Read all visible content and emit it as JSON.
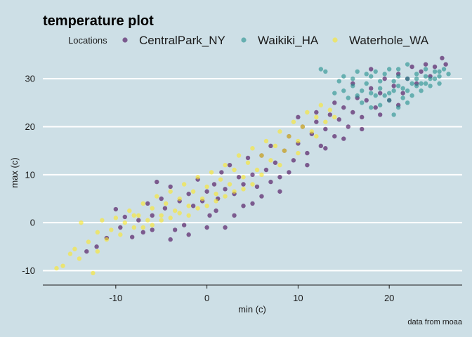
{
  "chart_data": {
    "type": "scatter",
    "title": "temperature plot",
    "xlabel": "min (c)",
    "ylabel": "max (c)",
    "caption": "data from rnoaa",
    "xlim": [
      -18,
      28
    ],
    "ylim": [
      -13,
      35
    ],
    "x_ticks": [
      -10,
      0,
      10,
      20
    ],
    "y_ticks": [
      -10,
      0,
      10,
      20,
      30
    ],
    "grid": {
      "horizontal_major": true,
      "vertical": false
    },
    "legend": {
      "title": "Locations",
      "position": "top"
    },
    "series": [
      {
        "name": "CentralPark_NY",
        "color": "#440154",
        "points": [
          [
            -13.2,
            -6.0
          ],
          [
            -12.1,
            -5.0
          ],
          [
            -11.0,
            -3.2
          ],
          [
            -10.0,
            2.8
          ],
          [
            -9.5,
            -1.0
          ],
          [
            -9.0,
            1.2
          ],
          [
            -8.2,
            -3.0
          ],
          [
            -7.5,
            0.5
          ],
          [
            -7.0,
            -2.0
          ],
          [
            -6.5,
            4.0
          ],
          [
            -6.0,
            1.5
          ],
          [
            -5.5,
            8.5
          ],
          [
            -5.0,
            5.0
          ],
          [
            -4.6,
            3.0
          ],
          [
            -4.0,
            7.5
          ],
          [
            -3.5,
            -1.5
          ],
          [
            -3.0,
            4.5
          ],
          [
            -2.5,
            -0.5
          ],
          [
            -2.0,
            6.0
          ],
          [
            -1.5,
            3.5
          ],
          [
            -1.0,
            9.0
          ],
          [
            -0.5,
            4.5
          ],
          [
            0.0,
            6.5
          ],
          [
            0.3,
            1.5
          ],
          [
            0.8,
            8.0
          ],
          [
            1.2,
            5.0
          ],
          [
            1.6,
            10.5
          ],
          [
            2.0,
            7.0
          ],
          [
            2.5,
            12.0
          ],
          [
            3.0,
            6.0
          ],
          [
            3.5,
            9.5
          ],
          [
            4.0,
            8.0
          ],
          [
            4.5,
            13.5
          ],
          [
            5.0,
            10.0
          ],
          [
            5.5,
            7.5
          ],
          [
            6.0,
            14.0
          ],
          [
            6.5,
            11.0
          ],
          [
            7.0,
            16.0
          ],
          [
            7.5,
            12.5
          ],
          [
            8.0,
            9.5
          ],
          [
            8.5,
            15.0
          ],
          [
            9.0,
            18.0
          ],
          [
            9.5,
            13.0
          ],
          [
            10.0,
            16.5
          ],
          [
            10.5,
            20.0
          ],
          [
            11.0,
            14.5
          ],
          [
            11.5,
            18.5
          ],
          [
            12.0,
            21.0
          ],
          [
            12.5,
            16.0
          ],
          [
            13.0,
            19.5
          ],
          [
            13.5,
            22.5
          ],
          [
            14.0,
            18.0
          ],
          [
            14.5,
            21.5
          ],
          [
            15.0,
            24.0
          ],
          [
            15.5,
            20.0
          ],
          [
            16.0,
            23.0
          ],
          [
            16.5,
            26.0
          ],
          [
            17.0,
            22.0
          ],
          [
            17.5,
            25.5
          ],
          [
            18.0,
            28.0
          ],
          [
            18.5,
            24.0
          ],
          [
            19.0,
            27.0
          ],
          [
            19.5,
            30.0
          ],
          [
            20.0,
            25.5
          ],
          [
            20.5,
            28.5
          ],
          [
            21.0,
            31.0
          ],
          [
            21.5,
            27.0
          ],
          [
            22.0,
            30.0
          ],
          [
            22.5,
            32.5
          ],
          [
            23.0,
            29.0
          ],
          [
            23.5,
            31.5
          ],
          [
            24.0,
            33.0
          ],
          [
            24.5,
            30.5
          ],
          [
            25.0,
            32.5
          ],
          [
            25.8,
            34.3
          ],
          [
            26.2,
            33.0
          ],
          [
            2.0,
            -1.0
          ],
          [
            4.0,
            3.5
          ],
          [
            6.0,
            5.5
          ],
          [
            8.0,
            6.5
          ],
          [
            -2.0,
            -2.5
          ],
          [
            0.0,
            -1.0
          ],
          [
            1.0,
            2.5
          ],
          [
            3.0,
            1.5
          ],
          [
            5.0,
            4.0
          ],
          [
            7.0,
            8.5
          ],
          [
            9.0,
            10.5
          ],
          [
            11.0,
            12.0
          ],
          [
            13.0,
            15.5
          ],
          [
            15.0,
            17.5
          ],
          [
            17.0,
            19.5
          ],
          [
            19.0,
            22.5
          ],
          [
            21.0,
            24.5
          ],
          [
            16.0,
            29.0
          ],
          [
            18.0,
            32.0
          ],
          [
            14.0,
            25.0
          ],
          [
            12.0,
            23.0
          ],
          [
            10.0,
            22.0
          ],
          [
            -4.0,
            -3.5
          ],
          [
            -6.0,
            -1.5
          ]
        ]
      },
      {
        "name": "Waikiki_HA",
        "color": "#21908c",
        "points": [
          [
            12.5,
            32.0
          ],
          [
            13.0,
            31.5
          ],
          [
            14.0,
            27.0
          ],
          [
            14.5,
            29.5
          ],
          [
            15.0,
            30.5
          ],
          [
            15.5,
            26.0
          ],
          [
            16.0,
            28.5
          ],
          [
            16.5,
            31.5
          ],
          [
            17.0,
            27.5
          ],
          [
            17.5,
            29.0
          ],
          [
            18.0,
            30.5
          ],
          [
            18.5,
            26.5
          ],
          [
            19.0,
            28.0
          ],
          [
            19.5,
            31.0
          ],
          [
            20.0,
            27.0
          ],
          [
            20.5,
            29.5
          ],
          [
            21.0,
            32.0
          ],
          [
            21.5,
            28.0
          ],
          [
            22.0,
            30.0
          ],
          [
            22.5,
            26.5
          ],
          [
            23.0,
            31.0
          ],
          [
            23.5,
            29.0
          ],
          [
            24.0,
            32.0
          ],
          [
            24.5,
            30.0
          ],
          [
            25.0,
            31.5
          ],
          [
            25.5,
            30.5
          ],
          [
            26.0,
            32.0
          ],
          [
            26.5,
            31.0
          ],
          [
            19.0,
            24.5
          ],
          [
            20.0,
            25.5
          ],
          [
            21.0,
            24.0
          ],
          [
            22.0,
            25.0
          ],
          [
            20.5,
            22.5
          ],
          [
            18.0,
            24.0
          ],
          [
            17.0,
            25.0
          ],
          [
            16.5,
            26.5
          ],
          [
            23.5,
            27.5
          ],
          [
            24.5,
            28.5
          ],
          [
            25.5,
            29.0
          ],
          [
            22.0,
            33.0
          ],
          [
            21.0,
            30.5
          ],
          [
            20.0,
            32.0
          ],
          [
            19.0,
            29.5
          ],
          [
            18.5,
            31.5
          ],
          [
            23.0,
            28.5
          ],
          [
            22.5,
            29.0
          ],
          [
            21.5,
            26.0
          ],
          [
            20.5,
            27.5
          ],
          [
            24.0,
            30.5
          ],
          [
            25.0,
            30.0
          ],
          [
            15.0,
            27.5
          ],
          [
            16.0,
            30.0
          ],
          [
            17.5,
            31.0
          ],
          [
            18.0,
            27.0
          ],
          [
            19.5,
            26.5
          ],
          [
            21.0,
            28.5
          ],
          [
            22.0,
            27.5
          ],
          [
            23.0,
            30.0
          ],
          [
            24.0,
            29.0
          ],
          [
            25.5,
            31.5
          ]
        ]
      },
      {
        "name": "Waterhole_WA",
        "color": "#fde725",
        "points": [
          [
            -16.5,
            -9.5
          ],
          [
            -15.8,
            -9.0
          ],
          [
            -15.0,
            -6.5
          ],
          [
            -14.5,
            -5.5
          ],
          [
            -13.8,
            0.0
          ],
          [
            -13.0,
            -4.0
          ],
          [
            -12.5,
            -10.5
          ],
          [
            -12.0,
            -2.0
          ],
          [
            -11.5,
            0.5
          ],
          [
            -11.0,
            -3.5
          ],
          [
            -10.5,
            -1.5
          ],
          [
            -10.0,
            1.0
          ],
          [
            -9.5,
            -2.5
          ],
          [
            -9.0,
            0.0
          ],
          [
            -8.5,
            2.5
          ],
          [
            -8.0,
            -1.0
          ],
          [
            -7.5,
            1.5
          ],
          [
            -7.0,
            4.0
          ],
          [
            -6.5,
            0.5
          ],
          [
            -6.0,
            3.0
          ],
          [
            -5.5,
            5.5
          ],
          [
            -5.0,
            1.5
          ],
          [
            -4.5,
            4.0
          ],
          [
            -4.0,
            6.5
          ],
          [
            -3.5,
            2.5
          ],
          [
            -3.0,
            5.0
          ],
          [
            -2.5,
            8.0
          ],
          [
            -2.0,
            3.5
          ],
          [
            -1.5,
            6.5
          ],
          [
            -1.0,
            9.5
          ],
          [
            -0.5,
            5.0
          ],
          [
            0.0,
            7.5
          ],
          [
            0.5,
            10.5
          ],
          [
            1.0,
            6.0
          ],
          [
            1.5,
            9.0
          ],
          [
            2.0,
            12.0
          ],
          [
            2.5,
            8.0
          ],
          [
            3.0,
            11.0
          ],
          [
            3.5,
            14.0
          ],
          [
            4.0,
            9.5
          ],
          [
            4.5,
            12.5
          ],
          [
            5.0,
            15.5
          ],
          [
            5.5,
            11.0
          ],
          [
            6.0,
            14.0
          ],
          [
            6.5,
            17.0
          ],
          [
            7.0,
            13.0
          ],
          [
            7.5,
            16.0
          ],
          [
            8.0,
            19.0
          ],
          [
            8.5,
            15.0
          ],
          [
            9.0,
            18.0
          ],
          [
            9.5,
            21.0
          ],
          [
            10.0,
            17.0
          ],
          [
            10.5,
            20.0
          ],
          [
            11.0,
            23.0
          ],
          [
            11.5,
            19.0
          ],
          [
            12.0,
            22.0
          ],
          [
            12.5,
            24.5
          ],
          [
            13.0,
            21.0
          ],
          [
            13.5,
            23.5
          ],
          [
            14.0,
            22.0
          ],
          [
            -7.0,
            -1.0
          ],
          [
            -5.0,
            0.5
          ],
          [
            -3.0,
            2.0
          ],
          [
            -1.0,
            3.0
          ],
          [
            1.0,
            4.5
          ],
          [
            3.0,
            6.5
          ],
          [
            5.0,
            8.0
          ],
          [
            -8.0,
            1.5
          ],
          [
            -6.0,
            -0.5
          ],
          [
            -4.0,
            1.0
          ],
          [
            -2.0,
            1.5
          ],
          [
            0.0,
            3.5
          ],
          [
            2.0,
            5.5
          ],
          [
            4.0,
            7.0
          ],
          [
            6.0,
            10.0
          ],
          [
            8.0,
            12.0
          ],
          [
            10.0,
            14.5
          ],
          [
            12.0,
            18.0
          ],
          [
            -14.0,
            -7.5
          ],
          [
            -12.0,
            -6.0
          ]
        ]
      }
    ]
  }
}
